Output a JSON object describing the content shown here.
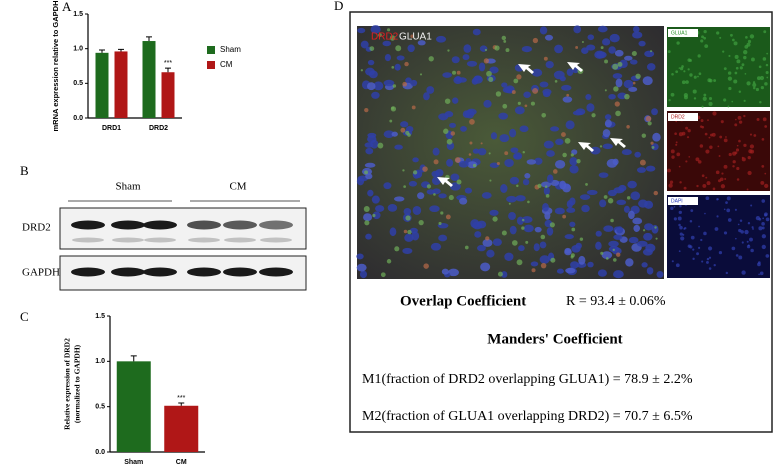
{
  "panel_labels": {
    "a": "A",
    "b": "B",
    "c": "C",
    "d": "D"
  },
  "chart_data": [
    {
      "type": "bar",
      "ylabel": "mRNA expression relative to GAPDH",
      "categories": [
        "DRD1",
        "DRD2"
      ],
      "series": [
        {
          "name": "Sham",
          "color": "#1e6b1e",
          "values": [
            0.94,
            1.11
          ],
          "errors": [
            0.04,
            0.06
          ]
        },
        {
          "name": "CM",
          "color": "#b01717",
          "values": [
            0.96,
            0.66
          ],
          "errors": [
            0.03,
            0.06
          ]
        }
      ],
      "annotations": [
        "***"
      ],
      "ylim": [
        0,
        1.5
      ],
      "yticks": [
        {
          "value": 0,
          "label": "0.0"
        },
        0.5,
        {
          "value": 1,
          "label": "1.0"
        },
        1.5
      ],
      "legend": "right"
    },
    {
      "type": "bar",
      "ylabel": [
        "Relative expression of DRD2",
        "(normalized to GAPDH)"
      ],
      "categories": [
        "Sham",
        "CM"
      ],
      "values": [
        1.0,
        0.51
      ],
      "errors": [
        0.06,
        0.03
      ],
      "colors": [
        "#1e6b1e",
        "#b01717"
      ],
      "annotations": [
        "***"
      ],
      "ylim": [
        0,
        1.5
      ],
      "yticks": [
        {
          "value": 0,
          "label": "0.0"
        },
        0.5,
        {
          "value": 1,
          "label": "1.0"
        },
        1.5
      ]
    }
  ],
  "blot": {
    "groups": [
      "Sham",
      "CM"
    ],
    "rows": [
      "DRD2",
      "GAPDH"
    ]
  },
  "colocalization": {
    "image_labels": [
      "DRD2",
      "GLUA1"
    ],
    "channel_labels": [
      "GLUA1",
      "DRD2",
      "DAPI"
    ],
    "overlap_label": "Overlap Coefficient",
    "overlap_value": "R = 93.4 ± 0.06%",
    "manders_title": "Manders' Coefficient",
    "m1": "M1(fraction of DRD2 overlapping GLUA1) = 78.9 ± 2.2%",
    "m2": "M2(fraction of GLUA1 overlapping DRD2) = 70.7 ± 6.5%"
  }
}
